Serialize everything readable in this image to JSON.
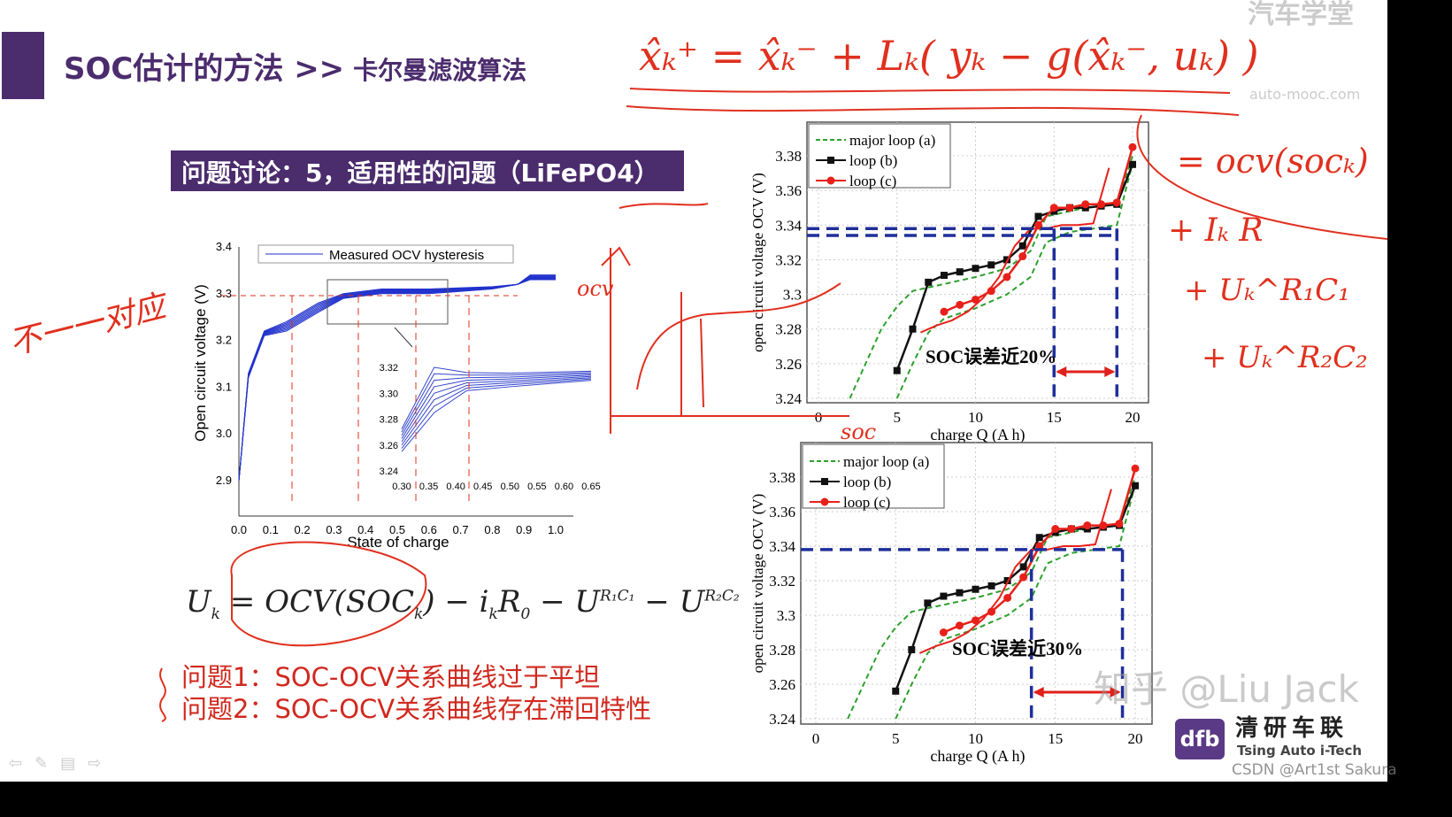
{
  "slide": {
    "title": "SOC估计的方法",
    "title_sep": ">>",
    "subtitle": "卡尔曼滤波算法",
    "question_box": "问题讨论：5，适用性的问题（LiFePO4）",
    "formula": {
      "U": "U",
      "k": "k",
      "eq": " = OCV(SOC",
      "close": ") − i",
      "R0": "R",
      "zero": "0",
      "minus": " − U",
      "r1c1": "R₁C₁",
      "r2c2": "R₂C₂"
    },
    "problems": [
      "问题1：SOC-OCV关系曲线过于平坦",
      "问题2：SOC-OCV关系曲线存在滞回特性"
    ],
    "nav_icons": [
      "prev-icon",
      "pen-icon",
      "menu-icon",
      "next-icon"
    ]
  },
  "left_chart": {
    "type": "line",
    "legend": "Measured OCV hysteresis",
    "xlabel": "State of charge",
    "ylabel": "Open circuit voltage (V)",
    "xlim": [
      0,
      1
    ],
    "ylim": [
      2.9,
      3.4
    ],
    "xticks": [
      "0.0",
      "0.1",
      "0.2",
      "0.3",
      "0.4",
      "0.5",
      "0.6",
      "0.7",
      "0.8",
      "0.9",
      "1.0"
    ],
    "yticks": [
      "2.9",
      "3.0",
      "3.1",
      "3.2",
      "3.3",
      "3.4"
    ],
    "upper": [
      [
        0,
        2.9
      ],
      [
        0.03,
        3.13
      ],
      [
        0.08,
        3.22
      ],
      [
        0.15,
        3.24
      ],
      [
        0.25,
        3.28
      ],
      [
        0.33,
        3.3
      ],
      [
        0.45,
        3.31
      ],
      [
        0.6,
        3.31
      ],
      [
        0.8,
        3.315
      ],
      [
        0.88,
        3.32
      ],
      [
        0.92,
        3.34
      ],
      [
        1.0,
        3.34
      ]
    ],
    "lower": [
      [
        0,
        2.9
      ],
      [
        0.03,
        3.12
      ],
      [
        0.08,
        3.21
      ],
      [
        0.15,
        3.22
      ],
      [
        0.25,
        3.26
      ],
      [
        0.35,
        3.29
      ],
      [
        0.45,
        3.3
      ],
      [
        0.6,
        3.3
      ],
      [
        0.8,
        3.31
      ],
      [
        0.9,
        3.32
      ],
      [
        1.0,
        3.33
      ]
    ],
    "inset": {
      "xlim": [
        0.3,
        0.65
      ],
      "ylim": [
        3.24,
        3.32
      ],
      "xticks": [
        "0.30",
        "0.35",
        "0.40",
        "0.45",
        "0.50",
        "0.55",
        "0.60",
        "0.65"
      ],
      "yticks": [
        "3.24",
        "3.26",
        "3.28",
        "3.30",
        "3.32"
      ]
    }
  },
  "right_charts": [
    {
      "type": "line",
      "xlabel": "charge Q (A h)",
      "ylabel": "open circuit voltage OCV (V)",
      "xlim": [
        0,
        20
      ],
      "ylim": [
        3.24,
        3.38
      ],
      "xticks": [
        "0",
        "5",
        "10",
        "15",
        "20"
      ],
      "yticks": [
        "3.24",
        "3.26",
        "3.28",
        "3.3",
        "3.32",
        "3.34",
        "3.36",
        "3.38"
      ],
      "annotation": "SOC误差近20%",
      "error_span_Ah": [
        15,
        19
      ],
      "reference_ocv": [
        3.334,
        3.338
      ]
    },
    {
      "type": "line",
      "xlabel": "charge Q (A h)",
      "ylabel": "open circuit voltage OCV (V)",
      "xlim": [
        0,
        20
      ],
      "ylim": [
        3.24,
        3.38
      ],
      "xticks": [
        "0",
        "5",
        "10",
        "15",
        "20"
      ],
      "yticks": [
        "3.24",
        "3.26",
        "3.28",
        "3.3",
        "3.32",
        "3.34",
        "3.36",
        "3.38"
      ],
      "annotation": "SOC误差近30%",
      "error_span_Ah": [
        13.5,
        19.2
      ],
      "reference_ocv": [
        3.338
      ]
    }
  ],
  "chart_data": {
    "type": "line",
    "series": [
      {
        "name": "major loop (a)",
        "color": "#2ca02c",
        "style": "dashed",
        "values": [
          [
            2,
            3.24
          ],
          [
            3,
            3.26
          ],
          [
            4,
            3.28
          ],
          [
            5,
            3.293
          ],
          [
            6,
            3.302
          ],
          [
            8,
            3.306
          ],
          [
            10,
            3.31
          ],
          [
            12,
            3.315
          ],
          [
            13.5,
            3.325
          ],
          [
            14.5,
            3.345
          ],
          [
            17,
            3.35
          ],
          [
            19,
            3.352
          ],
          [
            20,
            3.38
          ]
        ],
        "values_lower": [
          [
            5,
            3.24
          ],
          [
            6,
            3.26
          ],
          [
            7,
            3.278
          ],
          [
            8,
            3.286
          ],
          [
            10,
            3.292
          ],
          [
            12,
            3.3
          ],
          [
            13.5,
            3.31
          ],
          [
            14.5,
            3.33
          ],
          [
            16,
            3.336
          ],
          [
            19,
            3.34
          ],
          [
            20,
            3.376
          ]
        ]
      },
      {
        "name": "loop (b)",
        "color": "#111111",
        "style": "square",
        "values": [
          [
            5,
            3.256
          ],
          [
            6,
            3.28
          ],
          [
            7,
            3.307
          ],
          [
            8,
            3.311
          ],
          [
            9,
            3.313
          ],
          [
            10,
            3.315
          ],
          [
            11,
            3.317
          ],
          [
            12,
            3.32
          ],
          [
            13,
            3.328
          ],
          [
            14,
            3.345
          ],
          [
            15,
            3.348
          ],
          [
            16,
            3.35
          ],
          [
            17,
            3.35
          ],
          [
            18,
            3.351
          ],
          [
            19,
            3.352
          ],
          [
            20,
            3.375
          ]
        ]
      },
      {
        "name": "loop (c)",
        "color": "#e8201a",
        "style": "circle",
        "values": [
          [
            8,
            3.29
          ],
          [
            9,
            3.294
          ],
          [
            10,
            3.297
          ],
          [
            11,
            3.302
          ],
          [
            12,
            3.31
          ],
          [
            13,
            3.322
          ],
          [
            14,
            3.34
          ],
          [
            15,
            3.35
          ],
          [
            16,
            3.35
          ],
          [
            17,
            3.352
          ],
          [
            18,
            3.352
          ],
          [
            19,
            3.353
          ],
          [
            20,
            3.385
          ]
        ]
      }
    ]
  },
  "handwriting": {
    "kalman": "x̂ₖ⁺ = x̂ₖ⁻ + Lₖ( yₖ − g(x̂ₖ⁻, uₖ) )",
    "ocv_term": "= ocv(socₖ)",
    "ir_term": "+ Iₖ R",
    "u1_term": "+ Uₖ^R₁C₁",
    "u2_term": "+ Uₖ^R₂C₂",
    "not_one_to_one": "不一一对应",
    "ocv_axis": "ocv",
    "soc_axis": "soc",
    "color": "#e0301e"
  },
  "watermarks": {
    "auto_mooc": "汽车学堂",
    "auto_mooc_url": "auto-mooc.com",
    "zhihu": "知乎 @Liu Jack",
    "csdn": "CSDN @Art1st  Sakura",
    "logo_mark": "dfb",
    "logo_cn": "清研车联",
    "logo_en": "Tsing Auto i-Tech"
  }
}
